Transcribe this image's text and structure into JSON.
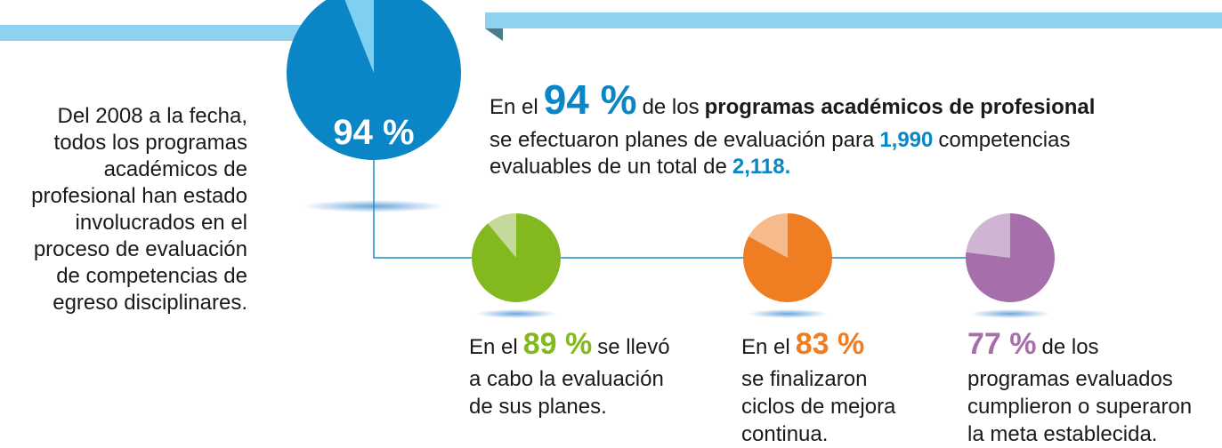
{
  "intro": [
    "Del 2008 a la fecha,",
    "todos los programas",
    "académicos de",
    "profesional han estado",
    "involucrados en el",
    "proceso de evaluación",
    "de competencias de",
    "egreso disciplinares."
  ],
  "pies": [
    {
      "value": 94,
      "label": "94 %",
      "color": "#0a86c6",
      "rest_color": "#7fd0f0"
    },
    {
      "value": 89,
      "label": "89 %",
      "color": "#84b81f",
      "rest_color": "#c3da9b"
    },
    {
      "value": 83,
      "label": "83 %",
      "color": "#ef7d22",
      "rest_color": "#f6ba8b"
    },
    {
      "value": 77,
      "label": "77 %",
      "color": "#a66fab",
      "rest_color": "#cfb4d4"
    }
  ],
  "main_text": {
    "pre": "En el",
    "post": "de los",
    "bold": "programas académicos de profesional",
    "line2a": "se efectuaron planes de evaluación para",
    "count": "1,990",
    "line2b": "competencias",
    "line3": "evaluables de un total de",
    "total": "2,118."
  },
  "notes": [
    {
      "pre": "En el",
      "post": "se llevó",
      "lines": [
        "a cabo la evaluación",
        "de sus planes."
      ]
    },
    {
      "pre": "En el",
      "post": "",
      "lines": [
        "se finalizaron",
        "ciclos de mejora",
        "continua."
      ]
    },
    {
      "pre": "",
      "post": "de los",
      "lines": [
        "programas evaluados",
        "cumplieron o superaron",
        "la meta establecida."
      ]
    }
  ]
}
